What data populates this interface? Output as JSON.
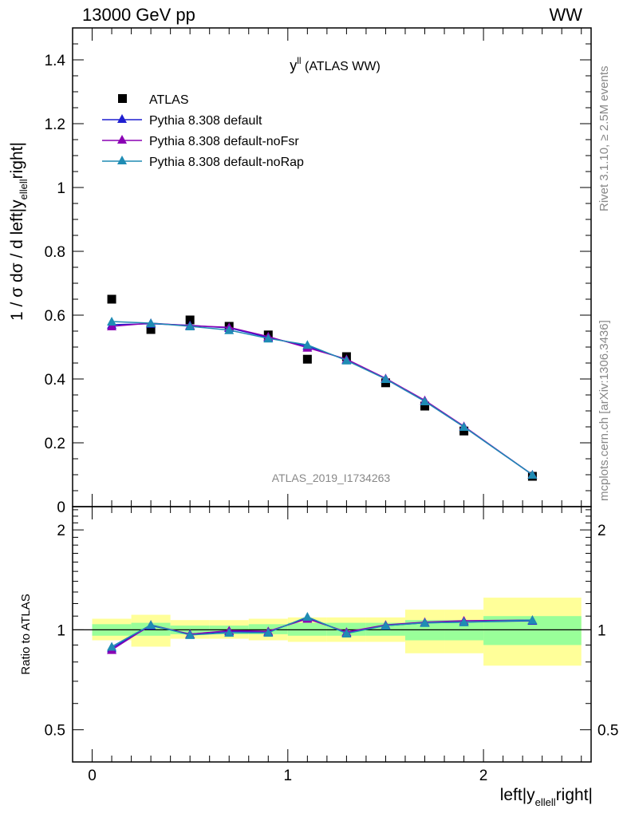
{
  "header": {
    "left": "13000 GeV pp",
    "right": "WW"
  },
  "side_text": {
    "rivet": "Rivet 3.1.10, ≥ 2.5M events",
    "mcplots": "mcplots.cern.ch [arXiv:1306.3436]"
  },
  "colors": {
    "atlas": "#000000",
    "default": "#1f1fd0",
    "noFsr": "#8a00b4",
    "noRap": "#1f8cb4",
    "band_inner": "#99ff99",
    "band_outer": "#ffff99"
  },
  "chart_data": [
    {
      "type": "scatter",
      "title_main": "y",
      "title_sup": "ll",
      "title_rest": " (ATLAS WW)",
      "ylabel": "1 / σ  dσ / d left|y_{ellell}right|",
      "ylabel_main": "1 / σ  dσ / d left|y",
      "ylabel_sub": "ellell",
      "ylabel_tail": "right|",
      "watermark": "ATLAS_2019_I1734263",
      "xlim": [
        -0.1,
        2.55
      ],
      "ylim": [
        0,
        1.5
      ],
      "grid": false,
      "legend_position": "top-left",
      "y_ticks": [
        "0",
        "0.2",
        "0.4",
        "0.6",
        "0.8",
        "1",
        "1.2",
        "1.4"
      ],
      "x": [
        0.1,
        0.3,
        0.5,
        0.7,
        0.9,
        1.1,
        1.3,
        1.5,
        1.7,
        1.9,
        2.25
      ],
      "x_edges": [
        0,
        0.2,
        0.4,
        0.6,
        0.8,
        1.0,
        1.2,
        1.4,
        1.6,
        1.8,
        2.0,
        2.5
      ],
      "series": [
        {
          "name": "ATLAS",
          "marker": "square",
          "values": [
            0.65,
            0.555,
            0.585,
            0.565,
            0.538,
            0.462,
            0.47,
            0.388,
            0.315,
            0.237,
            0.095
          ]
        },
        {
          "name": "Pythia 8.308 default",
          "marker": "triangle",
          "values": [
            0.57,
            0.573,
            0.568,
            0.56,
            0.53,
            0.503,
            0.46,
            0.4,
            0.33,
            0.25,
            0.1
          ]
        },
        {
          "name": "Pythia 8.308 default-noFsr",
          "marker": "triangle",
          "values": [
            0.565,
            0.575,
            0.567,
            0.562,
            0.533,
            0.498,
            0.462,
            0.402,
            0.333,
            0.252,
            0.1
          ]
        },
        {
          "name": "Pythia 8.308 default-noRap",
          "marker": "triangle",
          "values": [
            0.58,
            0.575,
            0.565,
            0.553,
            0.527,
            0.507,
            0.458,
            0.4,
            0.33,
            0.25,
            0.1
          ]
        }
      ]
    },
    {
      "type": "line",
      "ylabel": "Ratio to ATLAS",
      "xlabel": "left|y_{ellell}right|",
      "xlabel_main": "left|y",
      "xlabel_sub": "ellell",
      "xlabel_tail": "right|",
      "ylim": [
        0.4,
        2.35
      ],
      "y_scale": "log",
      "y_ticks": [
        "0.5",
        "1",
        "2"
      ],
      "x_ticks": [
        "0",
        "1",
        "2"
      ],
      "bands": {
        "x_edges": [
          0,
          0.2,
          0.4,
          0.6,
          0.8,
          1.0,
          1.2,
          1.4,
          1.6,
          1.8,
          2.0,
          2.5
        ],
        "inner_low": [
          0.96,
          0.96,
          0.97,
          0.97,
          0.97,
          0.96,
          0.96,
          0.96,
          0.93,
          0.93,
          0.9
        ],
        "inner_high": [
          1.04,
          1.05,
          1.03,
          1.03,
          1.04,
          1.05,
          1.05,
          1.05,
          1.07,
          1.07,
          1.1
        ],
        "outer_low": [
          0.93,
          0.89,
          0.94,
          0.94,
          0.93,
          0.92,
          0.92,
          0.92,
          0.85,
          0.85,
          0.78
        ],
        "outer_high": [
          1.08,
          1.11,
          1.07,
          1.07,
          1.08,
          1.09,
          1.09,
          1.09,
          1.15,
          1.15,
          1.25
        ]
      },
      "series": [
        {
          "name": "Pythia 8.308 default",
          "values": [
            0.88,
            1.03,
            0.97,
            0.99,
            0.985,
            1.09,
            0.98,
            1.03,
            1.05,
            1.055,
            1.065
          ]
        },
        {
          "name": "Pythia 8.308 default-noFsr",
          "values": [
            0.87,
            1.035,
            0.97,
            0.995,
            0.99,
            1.08,
            0.985,
            1.035,
            1.055,
            1.065,
            1.07
          ]
        },
        {
          "name": "Pythia 8.308 default-noRap",
          "values": [
            0.89,
            1.035,
            0.965,
            0.98,
            0.98,
            1.095,
            0.975,
            1.03,
            1.05,
            1.055,
            1.07
          ]
        }
      ]
    }
  ]
}
